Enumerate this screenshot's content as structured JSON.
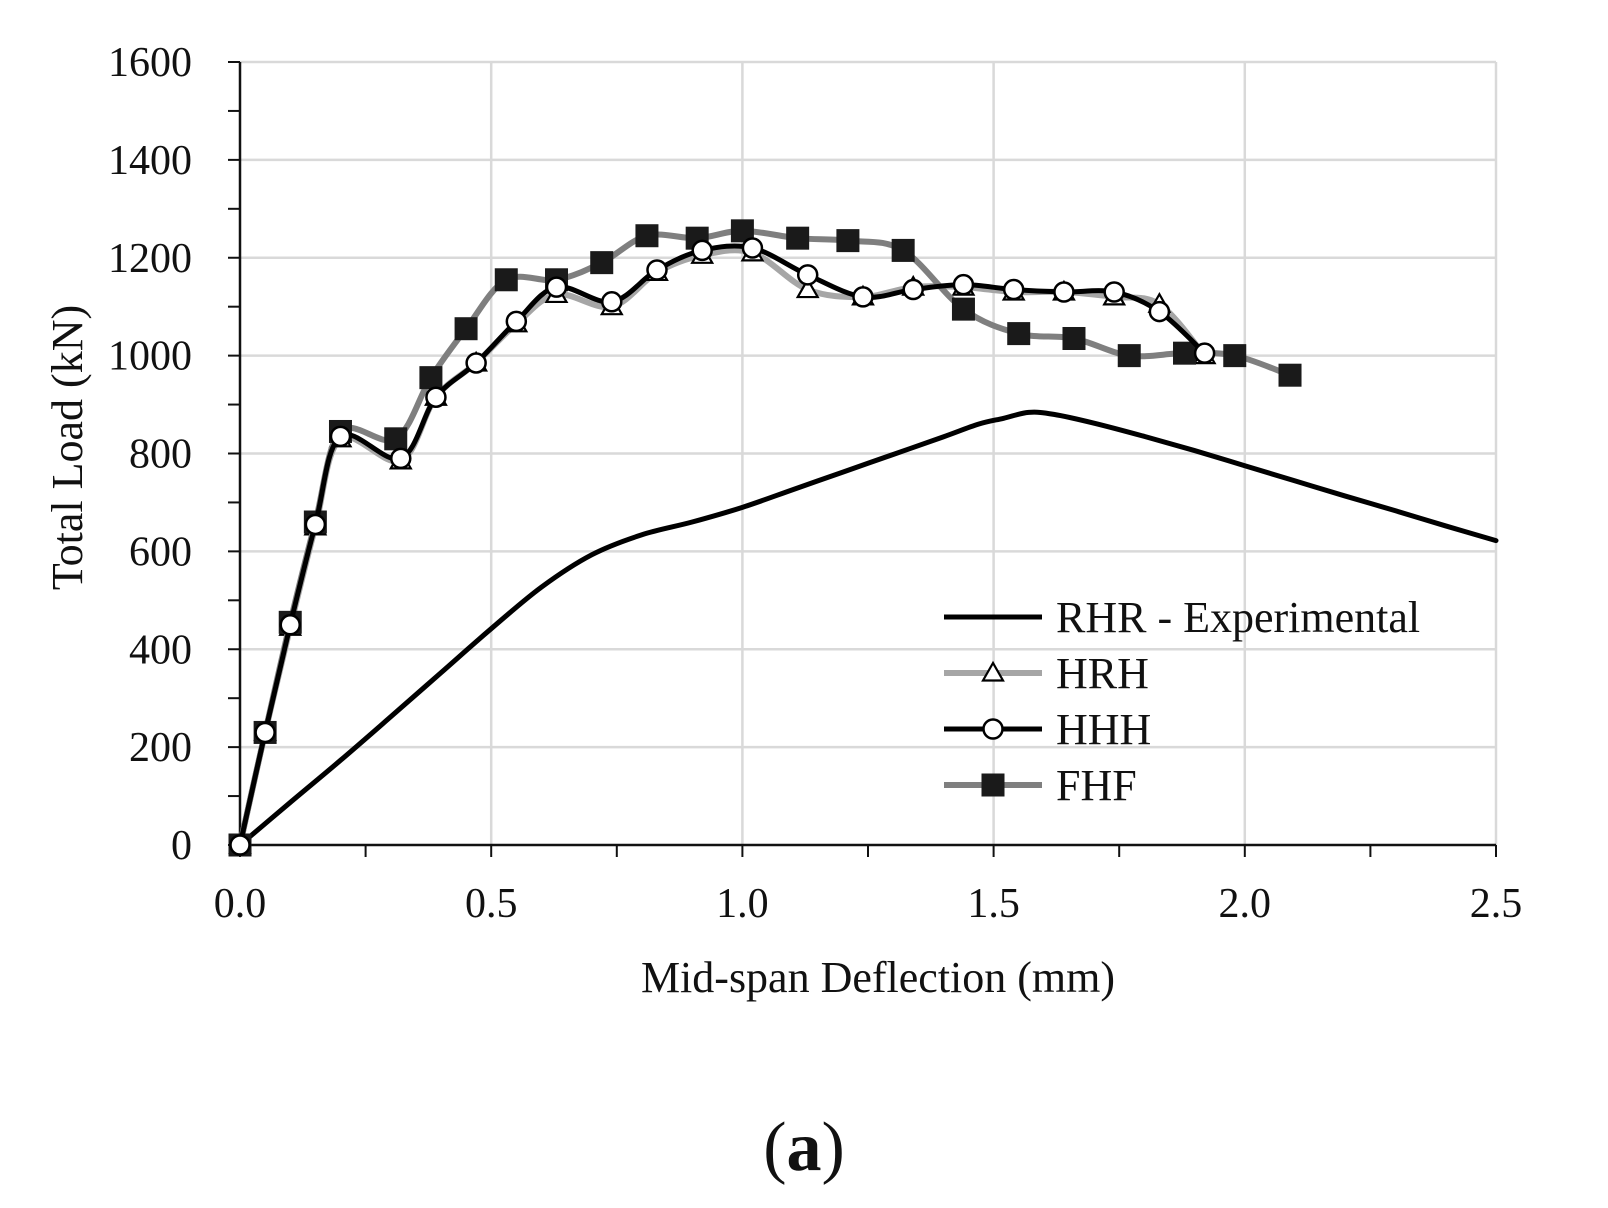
{
  "caption": {
    "open": "(",
    "letter": "a",
    "close": ")"
  },
  "colors": {
    "axis": "#111111",
    "grid": "#d9d9d9",
    "black": "#000000",
    "lightgray": "#a6a6a6",
    "darkgray": "#7f7f7f",
    "marker_dark": "#1a1a1a"
  },
  "chart_data": {
    "type": "line",
    "xlabel": "Mid-span Deflection (mm)",
    "ylabel": "Total Load (kN)",
    "xlim": [
      0,
      2.5
    ],
    "ylim": [
      0,
      1600
    ],
    "xticks": [
      "0.0",
      "0.5",
      "1.0",
      "1.5",
      "2.0",
      "2.5"
    ],
    "yticks": [
      "0",
      "200",
      "400",
      "600",
      "800",
      "1000",
      "1200",
      "1400",
      "1600"
    ],
    "grid": true,
    "legend_position": "bottom-right",
    "series": [
      {
        "name": "RHR - Experimental",
        "marker": "none",
        "color": "#000000",
        "x": [
          0,
          0.1,
          0.2,
          0.3,
          0.4,
          0.5,
          0.6,
          0.7,
          0.8,
          0.9,
          1.0,
          1.1,
          1.2,
          1.3,
          1.4,
          1.47,
          1.52,
          1.57,
          1.62,
          1.7,
          1.8,
          1.9,
          2.0,
          2.1,
          2.2,
          2.3,
          2.4,
          2.5
        ],
        "y": [
          0,
          87,
          173,
          262,
          352,
          442,
          527,
          593,
          634,
          660,
          690,
          726,
          762,
          798,
          834,
          860,
          872,
          884,
          880,
          862,
          835,
          806,
          775,
          744,
          713,
          683,
          652,
          622
        ]
      },
      {
        "name": "HRH",
        "marker": "triangle",
        "color": "#a6a6a6",
        "x": [
          0,
          0.05,
          0.1,
          0.15,
          0.2,
          0.32,
          0.39,
          0.47,
          0.55,
          0.63,
          0.74,
          0.83,
          0.92,
          1.02,
          1.13,
          1.24,
          1.34,
          1.44,
          1.54,
          1.64,
          1.74,
          1.83,
          1.92
        ],
        "y": [
          0,
          230,
          445,
          650,
          830,
          785,
          915,
          985,
          1065,
          1125,
          1100,
          1170,
          1205,
          1210,
          1135,
          1120,
          1140,
          1140,
          1130,
          1130,
          1120,
          1105,
          1000
        ]
      },
      {
        "name": "HHH",
        "marker": "circle",
        "color": "#000000",
        "x": [
          0,
          0.05,
          0.1,
          0.15,
          0.2,
          0.32,
          0.39,
          0.47,
          0.55,
          0.63,
          0.74,
          0.83,
          0.92,
          1.02,
          1.13,
          1.24,
          1.34,
          1.44,
          1.54,
          1.64,
          1.74,
          1.83,
          1.92
        ],
        "y": [
          0,
          230,
          450,
          655,
          835,
          790,
          915,
          985,
          1070,
          1140,
          1110,
          1175,
          1215,
          1220,
          1165,
          1120,
          1135,
          1145,
          1135,
          1130,
          1130,
          1090,
          1005
        ]
      },
      {
        "name": "FHF",
        "marker": "square",
        "color": "#7f7f7f",
        "x": [
          0,
          0.05,
          0.1,
          0.15,
          0.2,
          0.31,
          0.38,
          0.45,
          0.53,
          0.63,
          0.72,
          0.81,
          0.91,
          1.0,
          1.11,
          1.21,
          1.32,
          1.44,
          1.55,
          1.66,
          1.77,
          1.88,
          1.98,
          2.09
        ],
        "y": [
          0,
          230,
          455,
          660,
          845,
          830,
          955,
          1055,
          1155,
          1155,
          1190,
          1245,
          1240,
          1255,
          1240,
          1235,
          1215,
          1095,
          1045,
          1035,
          1000,
          1005,
          1000,
          960
        ]
      }
    ]
  }
}
